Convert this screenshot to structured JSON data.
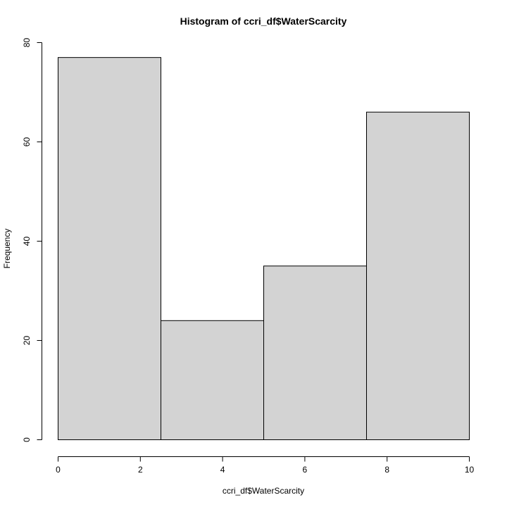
{
  "chart_data": {
    "type": "bar",
    "title": "Histogram of ccri_df$WaterScarcity",
    "xlabel": "ccri_df$WaterScarcity",
    "ylabel": "Frequency",
    "bins": [
      {
        "start": 0,
        "end": 2.5,
        "value": 77
      },
      {
        "start": 2.5,
        "end": 5,
        "value": 24
      },
      {
        "start": 5,
        "end": 7.5,
        "value": 35
      },
      {
        "start": 7.5,
        "end": 10,
        "value": 66
      }
    ],
    "xlim": [
      0,
      10
    ],
    "ylim": [
      0,
      80
    ],
    "x_ticks": [
      0,
      2,
      4,
      6,
      8,
      10
    ],
    "y_ticks": [
      0,
      20,
      40,
      60,
      80
    ],
    "grid": false,
    "bar_fill": "#d3d3d3",
    "bar_stroke": "#000000"
  }
}
